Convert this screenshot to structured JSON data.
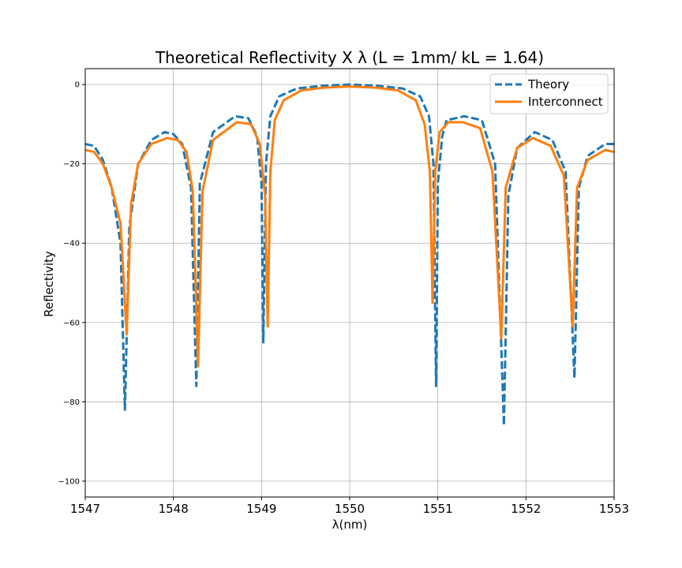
{
  "chart_data": {
    "type": "line",
    "title": "Theoretical Reflectivity X λ (L = 1mm/ kL = 1.64)",
    "xlabel": "λ(nm)",
    "ylabel": "Reflectivity",
    "xlim": [
      1547,
      1553
    ],
    "ylim": [
      -104,
      4
    ],
    "xticks": [
      "1547",
      "1548",
      "1549",
      "1550",
      "1551",
      "1552",
      "1553"
    ],
    "yticks": [
      "0",
      "−20",
      "−40",
      "−60",
      "−80",
      "−100"
    ],
    "grid": true,
    "legend_position": "top-right",
    "series": [
      {
        "name": "Theory",
        "style": "dashed",
        "color": "#1f77b4",
        "x": [
          1547.0,
          1547.1,
          1547.2,
          1547.3,
          1547.4,
          1547.45,
          1547.5,
          1547.6,
          1547.75,
          1547.9,
          1548.0,
          1548.1,
          1548.2,
          1548.26,
          1548.3,
          1548.45,
          1548.7,
          1548.85,
          1548.95,
          1549.0,
          1549.02,
          1549.05,
          1549.1,
          1549.2,
          1549.4,
          1549.7,
          1550.0,
          1550.3,
          1550.6,
          1550.8,
          1550.9,
          1550.95,
          1550.98,
          1551.0,
          1551.05,
          1551.1,
          1551.3,
          1551.5,
          1551.65,
          1551.75,
          1551.8,
          1551.9,
          1552.1,
          1552.3,
          1552.45,
          1552.55,
          1552.6,
          1552.7,
          1552.9,
          1553.0
        ],
        "y": [
          -15,
          -15.5,
          -19,
          -26,
          -40,
          -82,
          -36,
          -20,
          -14,
          -12,
          -12.5,
          -15,
          -26,
          -76,
          -25,
          -12,
          -8,
          -8.5,
          -13,
          -25,
          -65,
          -20,
          -8,
          -3,
          -1,
          -0.3,
          0,
          -0.3,
          -1,
          -3,
          -8,
          -20,
          -76,
          -25,
          -13,
          -9,
          -8,
          -9,
          -20,
          -86,
          -28,
          -16,
          -12,
          -14,
          -22,
          -74,
          -26,
          -18,
          -15,
          -15
        ]
      },
      {
        "name": "Interconnect",
        "style": "solid",
        "color": "#ff7f0e",
        "x": [
          1547.0,
          1547.1,
          1547.2,
          1547.3,
          1547.4,
          1547.47,
          1547.52,
          1547.6,
          1547.75,
          1547.93,
          1548.05,
          1548.15,
          1548.22,
          1548.28,
          1548.33,
          1548.45,
          1548.72,
          1548.88,
          1548.98,
          1549.04,
          1549.07,
          1549.1,
          1549.15,
          1549.25,
          1549.45,
          1549.7,
          1550.0,
          1550.3,
          1550.55,
          1550.75,
          1550.85,
          1550.91,
          1550.94,
          1550.97,
          1551.02,
          1551.12,
          1551.28,
          1551.48,
          1551.62,
          1551.72,
          1551.77,
          1551.9,
          1552.08,
          1552.28,
          1552.43,
          1552.53,
          1552.58,
          1552.7,
          1552.9,
          1553.0
        ],
        "y": [
          -16.5,
          -17,
          -20,
          -26,
          -35,
          -63,
          -30,
          -20,
          -15,
          -13.5,
          -14,
          -17,
          -27,
          -71,
          -27,
          -14,
          -9.5,
          -10,
          -15,
          -28,
          -61,
          -22,
          -9,
          -4,
          -1.5,
          -0.8,
          -0.5,
          -0.8,
          -1.5,
          -4,
          -10,
          -22,
          -55,
          -22,
          -12,
          -9.5,
          -9.5,
          -11,
          -22,
          -64,
          -26,
          -16,
          -13.5,
          -15.5,
          -23,
          -61,
          -26,
          -19,
          -16.5,
          -17
        ]
      }
    ]
  }
}
